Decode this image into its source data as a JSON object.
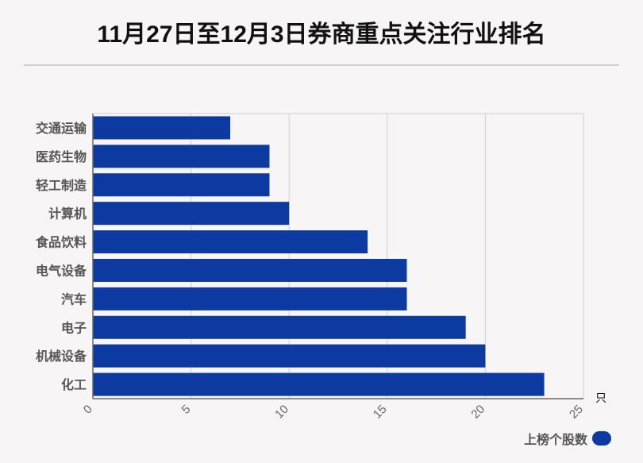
{
  "title": "11月27日至12月3日券商重点关注行业排名",
  "legend": {
    "label": "上榜个股数"
  },
  "chart_data": {
    "type": "bar",
    "orientation": "horizontal",
    "title": "11月27日至12月3日券商重点关注行业排名",
    "categories": [
      "交通运输",
      "医药生物",
      "轻工制造",
      "计算机",
      "食品饮料",
      "电气设备",
      "汽车",
      "电子",
      "机械设备",
      "化工"
    ],
    "series": [
      {
        "name": "上榜个股数",
        "values": [
          7,
          9,
          9,
          10,
          14,
          16,
          16,
          19,
          20,
          23
        ]
      }
    ],
    "xlim": [
      0,
      25
    ],
    "xticks": [
      0,
      5,
      10,
      15,
      20,
      25
    ],
    "x_unit": "只",
    "grid": true,
    "legend_position": "bottom-right",
    "bar_color": "#0d3aa0"
  }
}
